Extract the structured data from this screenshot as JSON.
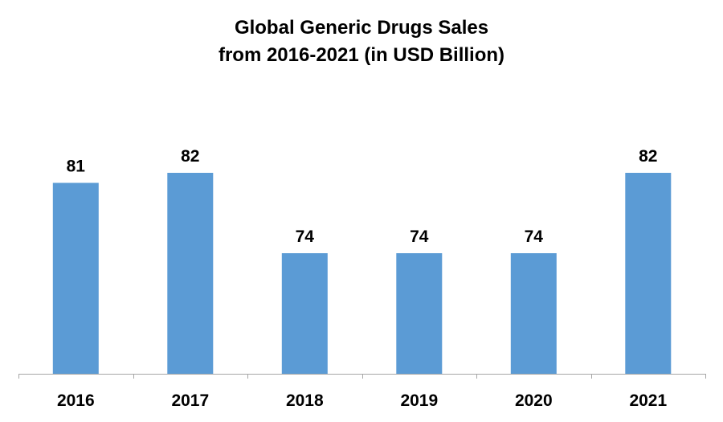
{
  "chart_data": {
    "type": "bar",
    "title": "Global Generic Drugs Sales",
    "subtitle": "from 2016-2021 (in USD Billion)",
    "categories": [
      "2016",
      "2017",
      "2018",
      "2019",
      "2020",
      "2021"
    ],
    "values": [
      81,
      82,
      74,
      74,
      74,
      82
    ],
    "ylim": [
      62,
      86
    ],
    "grid": false,
    "legend": "none",
    "bar_color": "#5b9bd5",
    "axis_color": "#a6a6a6"
  }
}
